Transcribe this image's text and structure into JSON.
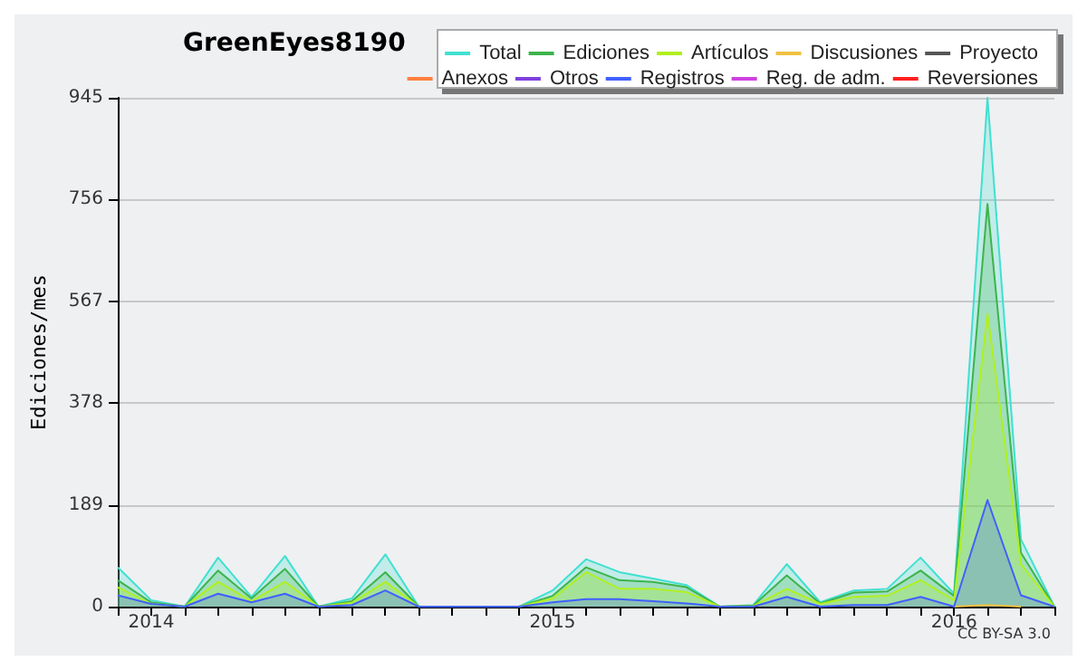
{
  "chart_data": {
    "type": "area",
    "title": "GreenEyes8190",
    "ylabel": "Ediciones/mes",
    "annotations": [
      "CC BY-SA 3.0"
    ],
    "categories": [
      null,
      "2014",
      null,
      null,
      null,
      null,
      null,
      null,
      null,
      null,
      null,
      null,
      null,
      "2015",
      null,
      null,
      null,
      null,
      null,
      null,
      null,
      null,
      null,
      null,
      null,
      "2016",
      null,
      null,
      null
    ],
    "ylim": [
      0,
      945
    ],
    "yticks": [
      0,
      189,
      378,
      567,
      756,
      945
    ],
    "grid": "y",
    "legend": "top right",
    "marker": "none",
    "series": [
      {
        "name": "Total",
        "color": "#40e0d0",
        "values": [
          73,
          12,
          0,
          91,
          18,
          94,
          0,
          15,
          97,
          0,
          0,
          0,
          0,
          30,
          88,
          64,
          52,
          40,
          0,
          3,
          79,
          8,
          30,
          33,
          91,
          24,
          945,
          125,
          0
        ]
      },
      {
        "name": "Ediciones",
        "color": "#3cb44b",
        "values": [
          49,
          8,
          0,
          67,
          15,
          70,
          0,
          10,
          64,
          0,
          0,
          0,
          0,
          20,
          73,
          49,
          46,
          36,
          0,
          2,
          58,
          6,
          26,
          28,
          67,
          20,
          748,
          100,
          0
        ]
      },
      {
        "name": "Artículos",
        "color": "#b0f020",
        "values": [
          36,
          5,
          0,
          46,
          10,
          46,
          0,
          7,
          46,
          0,
          0,
          0,
          0,
          15,
          64,
          33,
          33,
          27,
          0,
          1,
          33,
          5,
          18,
          20,
          49,
          12,
          544,
          79,
          0
        ]
      },
      {
        "name": "Discusiones",
        "color": "#f0c040",
        "values": [
          null,
          null,
          null,
          null,
          null,
          null,
          null,
          null,
          null,
          null,
          null,
          null,
          null,
          null,
          null,
          null,
          null,
          null,
          null,
          null,
          null,
          null,
          null,
          null,
          null,
          0,
          3,
          0,
          null
        ]
      },
      {
        "name": "Proyecto",
        "color": "#555555",
        "values": [
          null,
          null,
          null,
          null,
          null,
          null,
          null,
          null,
          null,
          null,
          null,
          null,
          null,
          null,
          null,
          null,
          null,
          null,
          null,
          null,
          null,
          null,
          null,
          null,
          null,
          null,
          null,
          null,
          null
        ]
      },
      {
        "name": "Anexos",
        "color": "#ff8040",
        "values": [
          null,
          null,
          null,
          null,
          null,
          null,
          null,
          null,
          null,
          null,
          null,
          null,
          null,
          null,
          null,
          null,
          null,
          null,
          null,
          null,
          null,
          null,
          null,
          null,
          null,
          null,
          null,
          null,
          null
        ]
      },
      {
        "name": "Otros",
        "color": "#8040e0",
        "values": [
          null,
          null,
          null,
          null,
          null,
          null,
          null,
          null,
          null,
          null,
          null,
          null,
          null,
          null,
          null,
          null,
          null,
          null,
          null,
          null,
          null,
          null,
          null,
          null,
          null,
          null,
          null,
          null,
          null
        ]
      },
      {
        "name": "Registros",
        "color": "#4060ff",
        "values": [
          21,
          5,
          0,
          24,
          8,
          24,
          0,
          3,
          30,
          0,
          0,
          0,
          0,
          8,
          14,
          14,
          10,
          6,
          0,
          0,
          18,
          0,
          3,
          3,
          18,
          0,
          198,
          21,
          0
        ]
      },
      {
        "name": "Reg. de adm.",
        "color": "#d040e0",
        "values": [
          null,
          null,
          null,
          null,
          null,
          null,
          null,
          null,
          null,
          null,
          null,
          null,
          null,
          null,
          null,
          null,
          null,
          null,
          null,
          null,
          null,
          null,
          null,
          null,
          null,
          null,
          null,
          null,
          null
        ]
      },
      {
        "name": "Reversiones",
        "color": "#ff2020",
        "values": [
          null,
          null,
          null,
          null,
          null,
          null,
          null,
          null,
          null,
          null,
          null,
          null,
          null,
          null,
          null,
          null,
          null,
          null,
          null,
          null,
          null,
          null,
          null,
          null,
          null,
          null,
          null,
          null,
          null
        ]
      }
    ]
  }
}
